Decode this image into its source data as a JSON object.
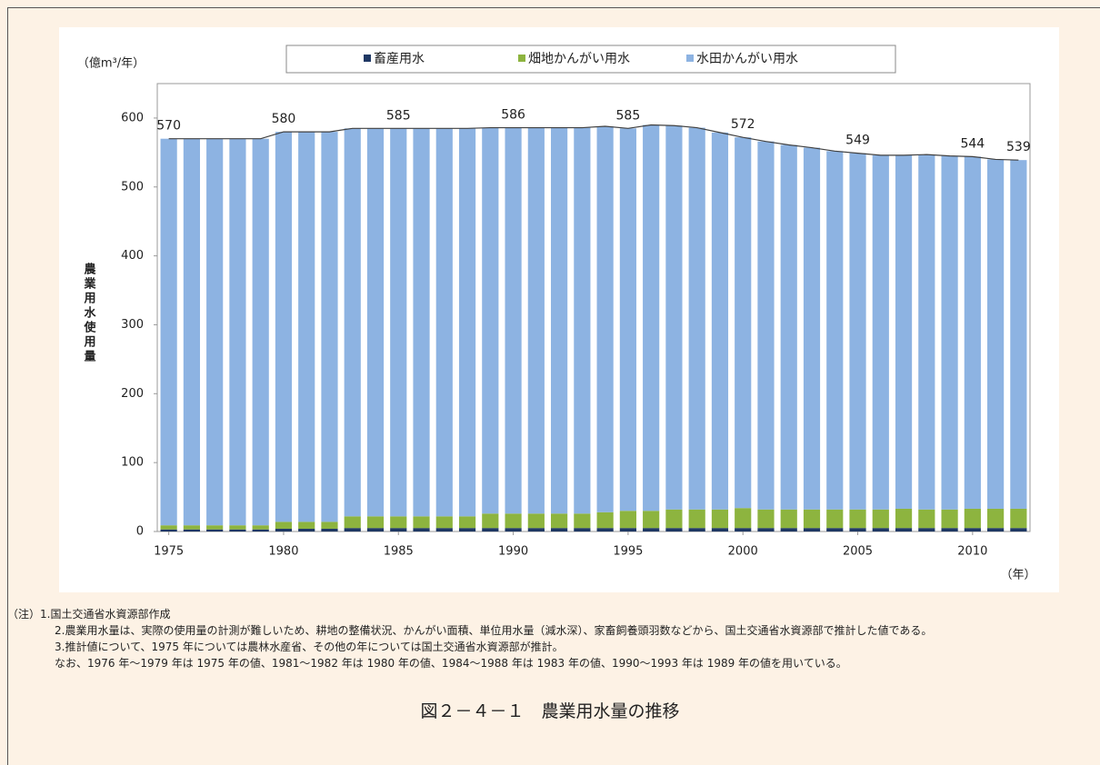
{
  "chart_data": {
    "type": "stacked-bar",
    "y_unit": "（億m³/年）",
    "y_label": "農業用水使用量",
    "x_unit": "（年）",
    "x": [
      1975,
      1976,
      1977,
      1978,
      1979,
      1980,
      1981,
      1982,
      1983,
      1984,
      1985,
      1986,
      1987,
      1988,
      1989,
      1990,
      1991,
      1992,
      1993,
      1994,
      1995,
      1996,
      1997,
      1998,
      1999,
      2000,
      2001,
      2002,
      2003,
      2004,
      2005,
      2006,
      2007,
      2008,
      2009,
      2010,
      2011,
      2012
    ],
    "xlim": [
      1974.5,
      2012.5
    ],
    "xticks": [
      1975,
      1980,
      1985,
      1990,
      1995,
      2000,
      2005,
      2010
    ],
    "ylim": [
      0,
      650
    ],
    "yticks": [
      0,
      100,
      200,
      300,
      400,
      500,
      600
    ],
    "series": [
      {
        "name": "畜産用水",
        "color": "#1f3864",
        "values": [
          3,
          3,
          3,
          3,
          3,
          4,
          4,
          4,
          5,
          5,
          5,
          5,
          5,
          5,
          5,
          5,
          5,
          5,
          5,
          5,
          5,
          5,
          5,
          5,
          5,
          5,
          5,
          5,
          5,
          5,
          5,
          5,
          5,
          5,
          5,
          5,
          5,
          5
        ]
      },
      {
        "name": "畑地かんがい用水",
        "color": "#8db43f",
        "values": [
          6,
          6,
          6,
          6,
          6,
          10,
          10,
          10,
          17,
          17,
          17,
          17,
          17,
          17,
          21,
          21,
          21,
          21,
          21,
          23,
          25,
          25,
          27,
          27,
          27,
          29,
          27,
          27,
          27,
          27,
          27,
          27,
          28,
          27,
          27,
          28,
          28,
          28
        ]
      },
      {
        "name": "水田かんがい用水",
        "color": "#8db3e2",
        "values": [
          561,
          561,
          561,
          561,
          561,
          566,
          566,
          566,
          563,
          563,
          563,
          563,
          563,
          563,
          560,
          560,
          560,
          560,
          560,
          560,
          555,
          560,
          557,
          554,
          547,
          538,
          534,
          529,
          525,
          520,
          517,
          514,
          513,
          515,
          513,
          511,
          507,
          506
        ]
      }
    ],
    "totals": [
      570,
      570,
      570,
      570,
      570,
      580,
      580,
      580,
      585,
      585,
      585,
      585,
      585,
      585,
      586,
      586,
      586,
      586,
      586,
      588,
      585,
      590,
      589,
      586,
      579,
      572,
      566,
      561,
      557,
      552,
      549,
      546,
      546,
      547,
      545,
      544,
      540,
      539
    ],
    "total_labels": [
      570,
      null,
      null,
      null,
      null,
      580,
      null,
      null,
      null,
      null,
      585,
      null,
      null,
      null,
      null,
      586,
      null,
      null,
      null,
      null,
      585,
      null,
      null,
      null,
      null,
      572,
      null,
      null,
      null,
      null,
      549,
      null,
      null,
      null,
      null,
      544,
      null,
      539
    ],
    "line_color": "#404040"
  },
  "notes": {
    "prefix": "（注）",
    "items": [
      "1.国土交通省水資源部作成",
      "2.農業用水量は、実際の使用量の計測が難しいため、耕地の整備状況、かんがい面積、単位用水量（減水深）、家畜飼養頭羽数などから、国土交通省水資源部で推計した値である。",
      "3.推計値について、1975 年については農林水産省、その他の年については国土交通省水資源部が推計。",
      "なお、1976 年～1979 年は 1975 年の値、1981～1982 年は 1980 年の値、1984～1988 年は 1983 年の値、1990～1993 年は 1989 年の値を用いている。"
    ]
  },
  "caption": "図２－４－１　農業用水量の推移"
}
